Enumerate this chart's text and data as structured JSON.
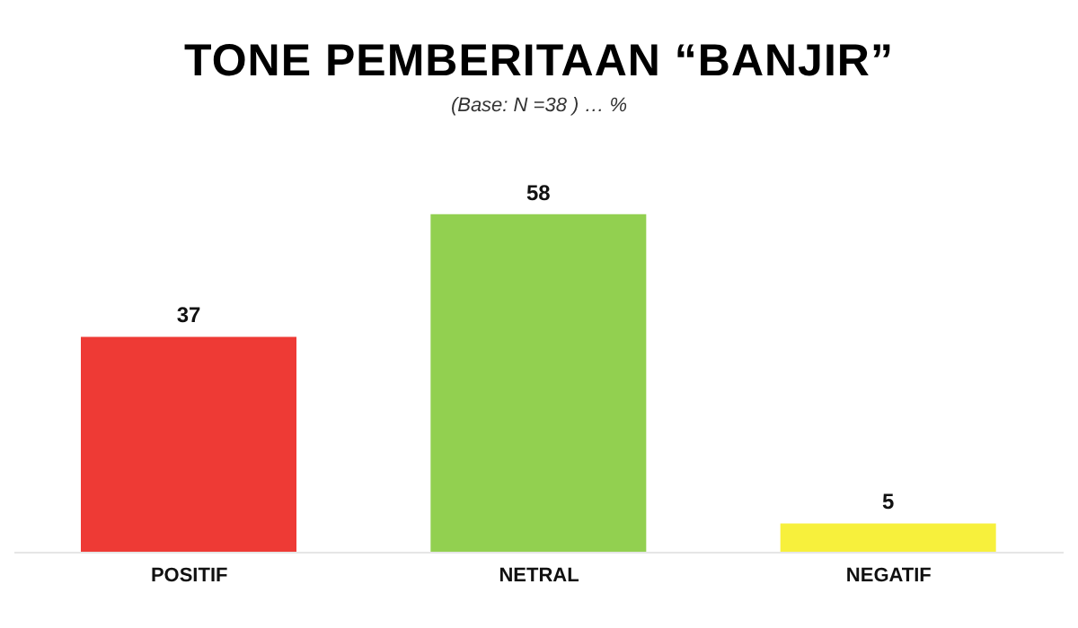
{
  "chart_data": {
    "type": "bar",
    "title": "TONE PEMBERITAAN “BANJIR”",
    "subtitle": "(Base: N =38 ) … %",
    "categories": [
      "POSITIF",
      "NETRAL",
      "NEGATIF"
    ],
    "values": [
      37,
      58,
      5
    ],
    "colors": [
      "#ee3a35",
      "#92d050",
      "#f7f03c"
    ],
    "data_labels": true
  }
}
